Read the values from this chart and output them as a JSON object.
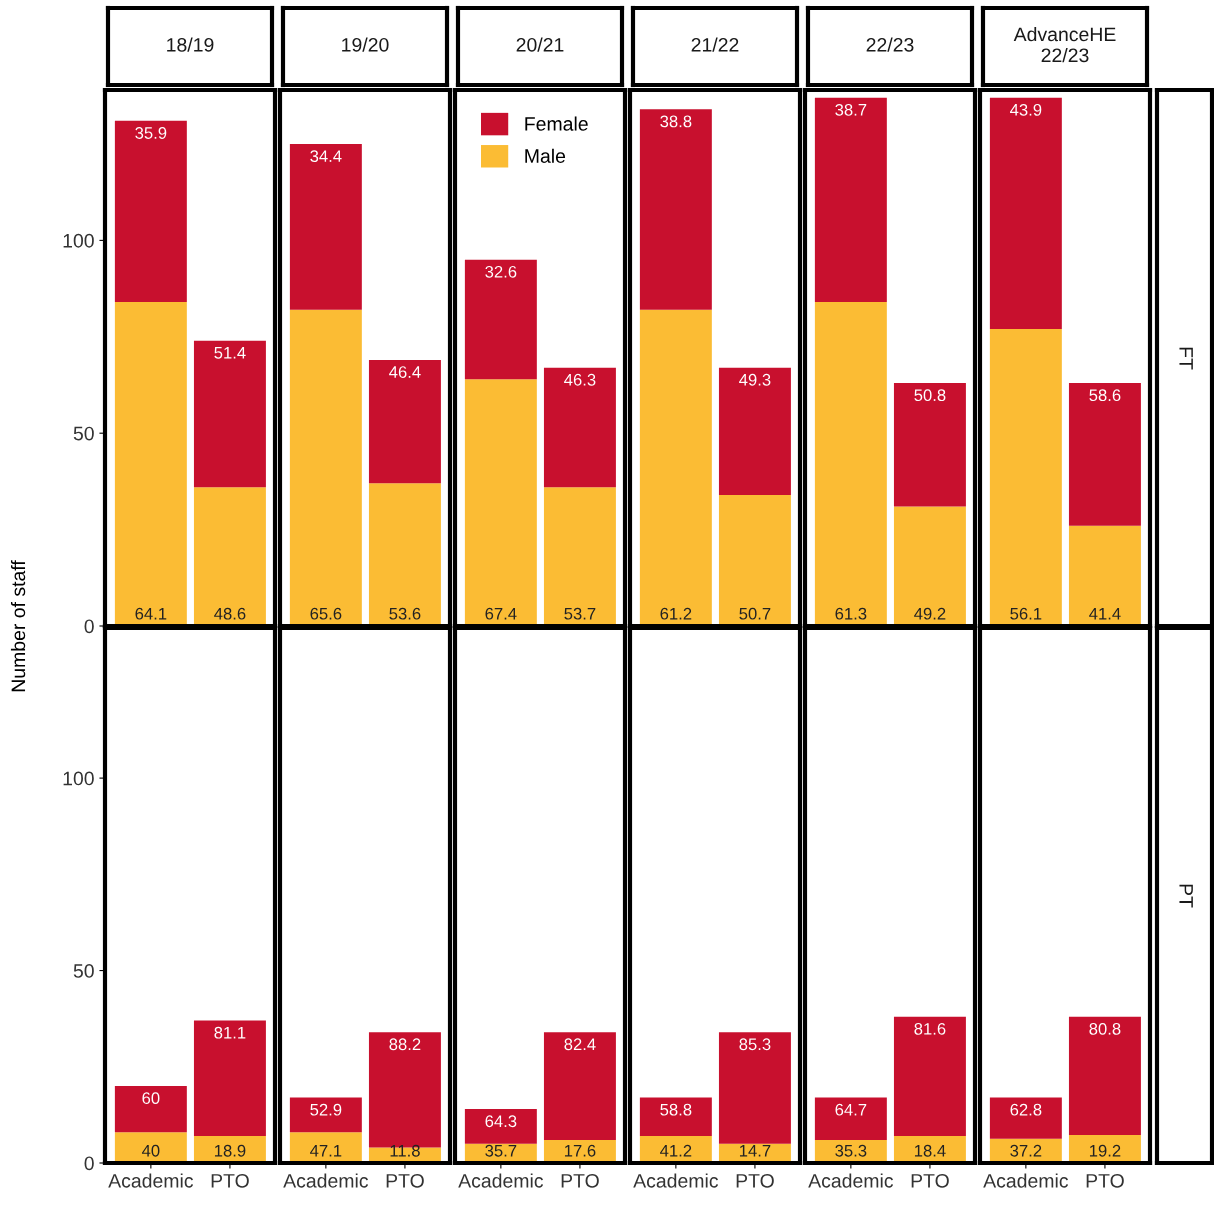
{
  "chart_data": [
    {
      "type": "bar",
      "title": "18/19",
      "ylabel": "Number of staff",
      "categories": [
        "Academic",
        "PTO"
      ],
      "stacked": true,
      "ylim": [
        0,
        139
      ],
      "yticks": [
        0,
        50,
        100
      ],
      "tick_labels": "y",
      "grid": false,
      "series": [
        {
          "color": "#fbbc34",
          "values": [
            84,
            36
          ]
        },
        {
          "color": "#c8102e",
          "values": [
            47,
            38
          ]
        }
      ],
      "annotations": [
        {
          "text": "64.1",
          "x": "Academic",
          "y": 0
        },
        {
          "text": "48.6",
          "x": "PTO",
          "y": 0
        },
        {
          "text": "35.9",
          "x": "Academic",
          "y": 131
        },
        {
          "text": "51.4",
          "x": "PTO",
          "y": 74
        }
      ]
    },
    {
      "type": "bar",
      "title": "19/20",
      "categories": [
        "Academic",
        "PTO"
      ],
      "stacked": true,
      "ylim": [
        0,
        139
      ],
      "yticks": [
        0,
        50,
        100
      ],
      "tick_labels": false,
      "grid": false,
      "series": [
        {
          "color": "#fbbc34",
          "values": [
            82,
            37
          ]
        },
        {
          "color": "#c8102e",
          "values": [
            43,
            32
          ]
        }
      ],
      "annotations": [
        {
          "text": "65.6",
          "x": "Academic",
          "y": 0
        },
        {
          "text": "53.6",
          "x": "PTO",
          "y": 0
        },
        {
          "text": "34.4",
          "x": "Academic",
          "y": 125
        },
        {
          "text": "46.4",
          "x": "PTO",
          "y": 69
        }
      ]
    },
    {
      "type": "bar",
      "title": "20/21",
      "categories": [
        "Academic",
        "PTO"
      ],
      "stacked": true,
      "ylim": [
        0,
        139
      ],
      "yticks": [
        0,
        50,
        100
      ],
      "tick_labels": false,
      "grid": false,
      "legend": "top left",
      "series": [
        {
          "name": "Male",
          "color": "#fbbc34",
          "values": [
            64,
            36
          ]
        },
        {
          "name": "Female",
          "color": "#c8102e",
          "values": [
            31,
            31
          ]
        }
      ],
      "annotations": [
        {
          "text": "67.4",
          "x": "Academic",
          "y": 0
        },
        {
          "text": "53.7",
          "x": "PTO",
          "y": 0
        },
        {
          "text": "32.6",
          "x": "Academic",
          "y": 95
        },
        {
          "text": "46.3",
          "x": "PTO",
          "y": 67
        }
      ]
    },
    {
      "type": "bar",
      "title": "21/22",
      "categories": [
        "Academic",
        "PTO"
      ],
      "stacked": true,
      "ylim": [
        0,
        139
      ],
      "yticks": [
        0,
        50,
        100
      ],
      "tick_labels": false,
      "grid": false,
      "series": [
        {
          "color": "#fbbc34",
          "values": [
            82,
            34
          ]
        },
        {
          "color": "#c8102e",
          "values": [
            52,
            33
          ]
        }
      ],
      "annotations": [
        {
          "text": "61.2",
          "x": "Academic",
          "y": 0
        },
        {
          "text": "50.7",
          "x": "PTO",
          "y": 0
        },
        {
          "text": "38.8",
          "x": "Academic",
          "y": 134
        },
        {
          "text": "49.3",
          "x": "PTO",
          "y": 67
        }
      ]
    },
    {
      "type": "bar",
      "title": "22/23",
      "categories": [
        "Academic",
        "PTO"
      ],
      "stacked": true,
      "ylim": [
        0,
        139
      ],
      "yticks": [
        0,
        50,
        100
      ],
      "tick_labels": false,
      "grid": false,
      "series": [
        {
          "color": "#fbbc34",
          "values": [
            84,
            31
          ]
        },
        {
          "color": "#c8102e",
          "values": [
            53,
            32
          ]
        }
      ],
      "annotations": [
        {
          "text": "61.3",
          "x": "Academic",
          "y": 0
        },
        {
          "text": "49.2",
          "x": "PTO",
          "y": 0
        },
        {
          "text": "38.7",
          "x": "Academic",
          "y": 137
        },
        {
          "text": "50.8",
          "x": "PTO",
          "y": 63
        }
      ]
    },
    {
      "type": "bar",
      "title": "AdvanceHE\n22/23",
      "categories": [
        "Academic",
        "PTO"
      ],
      "stacked": true,
      "ylim": [
        0,
        139
      ],
      "yticks": [
        0,
        50,
        100
      ],
      "tick_labels": false,
      "grid": false,
      "series": [
        {
          "color": "#fbbc34",
          "values": [
            77,
            26
          ]
        },
        {
          "color": "#c8102e",
          "values": [
            60,
            37
          ]
        }
      ],
      "annotations": [
        "FT",
        {
          "text": "56.1",
          "x": "Academic",
          "y": 0
        },
        {
          "text": "41.4",
          "x": "PTO",
          "y": 0
        },
        {
          "text": "43.9",
          "x": "Academic",
          "y": 137
        },
        {
          "text": "58.6",
          "x": "PTO",
          "y": 63
        }
      ]
    },
    {
      "type": "bar",
      "categories": [
        "Academic",
        "PTO"
      ],
      "stacked": true,
      "ylim": [
        0,
        139
      ],
      "yticks": [
        0,
        50,
        100
      ],
      "grid": false,
      "series": [
        {
          "color": "#fbbc34",
          "values": [
            8,
            7
          ]
        },
        {
          "color": "#c8102e",
          "values": [
            12,
            30
          ]
        }
      ],
      "annotations": [
        {
          "text": "40",
          "x": "Academic",
          "y": 0
        },
        {
          "text": "18.9",
          "x": "PTO",
          "y": 0
        },
        {
          "text": "60",
          "x": "Academic",
          "y": 20
        },
        {
          "text": "81.1",
          "x": "PTO",
          "y": 37
        }
      ]
    },
    {
      "type": "bar",
      "categories": [
        "Academic",
        "PTO"
      ],
      "stacked": true,
      "ylim": [
        0,
        139
      ],
      "yticks": [
        0,
        50,
        100
      ],
      "tick_labels": "x",
      "grid": false,
      "series": [
        {
          "color": "#fbbc34",
          "values": [
            8,
            4
          ]
        },
        {
          "color": "#c8102e",
          "values": [
            9,
            30
          ]
        }
      ],
      "annotations": [
        {
          "text": "47.1",
          "x": "Academic",
          "y": 0
        },
        {
          "text": "11.8",
          "x": "PTO",
          "y": 0
        },
        {
          "text": "52.9",
          "x": "Academic",
          "y": 17
        },
        {
          "text": "88.2",
          "x": "PTO",
          "y": 34
        }
      ]
    },
    {
      "type": "bar",
      "categories": [
        "Academic",
        "PTO"
      ],
      "stacked": true,
      "ylim": [
        0,
        139
      ],
      "yticks": [
        0,
        50,
        100
      ],
      "tick_labels": "x",
      "grid": false,
      "series": [
        {
          "color": "#fbbc34",
          "values": [
            5,
            6
          ]
        },
        {
          "color": "#c8102e",
          "values": [
            9,
            28
          ]
        }
      ],
      "annotations": [
        {
          "text": "35.7",
          "x": "Academic",
          "y": 0
        },
        {
          "text": "17.6",
          "x": "PTO",
          "y": 0
        },
        {
          "text": "64.3",
          "x": "Academic",
          "y": 14
        },
        {
          "text": "82.4",
          "x": "PTO",
          "y": 34
        }
      ]
    },
    {
      "type": "bar",
      "categories": [
        "Academic",
        "PTO"
      ],
      "stacked": true,
      "ylim": [
        0,
        139
      ],
      "yticks": [
        0,
        50,
        100
      ],
      "tick_labels": "x",
      "grid": false,
      "series": [
        {
          "color": "#fbbc34",
          "values": [
            7,
            5
          ]
        },
        {
          "color": "#c8102e",
          "values": [
            10,
            29
          ]
        }
      ],
      "annotations": [
        {
          "text": "41.2",
          "x": "Academic",
          "y": 0
        },
        {
          "text": "14.7",
          "x": "PTO",
          "y": 0
        },
        {
          "text": "58.8",
          "x": "Academic",
          "y": 17
        },
        {
          "text": "85.3",
          "x": "PTO",
          "y": 34
        }
      ]
    },
    {
      "type": "bar",
      "categories": [
        "Academic",
        "PTO"
      ],
      "stacked": true,
      "ylim": [
        0,
        139
      ],
      "yticks": [
        0,
        50,
        100
      ],
      "tick_labels": "x",
      "grid": false,
      "series": [
        {
          "color": "#fbbc34",
          "values": [
            6,
            7
          ]
        },
        {
          "color": "#c8102e",
          "values": [
            11,
            31
          ]
        }
      ],
      "annotations": [
        {
          "text": "35.3",
          "x": "Academic",
          "y": 0
        },
        {
          "text": "18.4",
          "x": "PTO",
          "y": 0
        },
        {
          "text": "64.7",
          "x": "Academic",
          "y": 17
        },
        {
          "text": "81.6",
          "x": "PTO",
          "y": 38
        }
      ]
    },
    {
      "type": "bar",
      "categories": [
        "Academic",
        "PTO"
      ],
      "stacked": true,
      "ylim": [
        0,
        139
      ],
      "yticks": [
        0,
        50,
        100
      ],
      "tick_labels": "x",
      "grid": false,
      "series": [
        {
          "color": "#fbbc34",
          "values": [
            6.3,
            7.3
          ]
        },
        {
          "color": "#c8102e",
          "values": [
            10.7,
            30.7
          ]
        }
      ],
      "annotations": [
        "PT",
        {
          "text": "37.2",
          "x": "Academic",
          "y": 0
        },
        {
          "text": "19.2",
          "x": "PTO",
          "y": 0
        },
        {
          "text": "62.8",
          "x": "Academic",
          "y": 17
        },
        {
          "text": "80.8",
          "x": "PTO",
          "y": 38
        }
      ]
    }
  ]
}
